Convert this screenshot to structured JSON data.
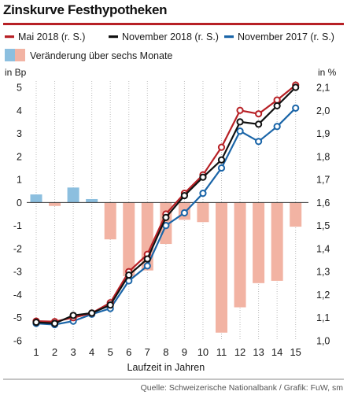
{
  "chart_data": {
    "type": "bar+line",
    "title": "Zinskurve Festhypotheken",
    "xlabel": "Laufzeit in Jahren",
    "ylabel_left": "in Bp",
    "ylabel_right": "in %",
    "categories": [
      1,
      2,
      3,
      4,
      5,
      6,
      7,
      8,
      9,
      10,
      11,
      12,
      13,
      14,
      15
    ],
    "y_left_range": [
      -6,
      5
    ],
    "y_left_ticks": [
      5,
      4,
      3,
      2,
      1,
      0,
      -1,
      -2,
      -3,
      -4,
      -5,
      -6
    ],
    "y_right_range": [
      1.0,
      2.1
    ],
    "y_right_ticks": [
      "2,1",
      "2,0",
      "1,9",
      "1,8",
      "1,7",
      "1,6",
      "1,5",
      "1,4",
      "1,3",
      "1,2",
      "1,1",
      "1,0"
    ],
    "grid": "vertical",
    "legend": [
      {
        "label": "Mai 2018 (r. S.)",
        "color": "#b72025",
        "kind": "line"
      },
      {
        "label": "November 2018 (r. S.)",
        "color": "#111111",
        "kind": "line"
      },
      {
        "label": "November 2017 (r. S.)",
        "color": "#1a65a8",
        "kind": "line"
      },
      {
        "label": "Veränderung über sechs Monate",
        "colors": [
          "#8cbfdf",
          "#f2b3a3"
        ],
        "kind": "bar"
      }
    ],
    "bars": {
      "name": "Veränderung über sechs Monate",
      "axis": "left",
      "values": [
        0.35,
        -0.15,
        0.65,
        0.15,
        -1.6,
        -3.2,
        -2.95,
        -1.8,
        -0.75,
        -0.85,
        -5.65,
        -4.55,
        -3.5,
        -3.4,
        -1.05
      ],
      "positive_color": "#8cbfdf",
      "negative_color": "#f2b3a3"
    },
    "series": [
      {
        "name": "Mai 2018 (r. S.)",
        "axis": "right",
        "color": "#b72025",
        "values": [
          1.085,
          1.083,
          1.1,
          1.12,
          1.165,
          1.3,
          1.375,
          1.55,
          1.64,
          1.72,
          1.84,
          2.0,
          1.985,
          2.045,
          2.11
        ]
      },
      {
        "name": "November 2018 (r. S.)",
        "axis": "right",
        "color": "#111111",
        "values": [
          1.08,
          1.075,
          1.11,
          1.12,
          1.155,
          1.285,
          1.355,
          1.535,
          1.63,
          1.71,
          1.785,
          1.95,
          1.94,
          2.02,
          2.1
        ]
      },
      {
        "name": "November 2017 (r. S.)",
        "axis": "right",
        "color": "#1a65a8",
        "values": [
          1.075,
          1.07,
          1.085,
          1.115,
          1.14,
          1.26,
          1.325,
          1.5,
          1.555,
          1.64,
          1.75,
          1.91,
          1.865,
          1.93,
          2.01
        ]
      }
    ],
    "source": "Quelle: Schweizerische Nationalbank / Grafik: FuW, sm"
  }
}
